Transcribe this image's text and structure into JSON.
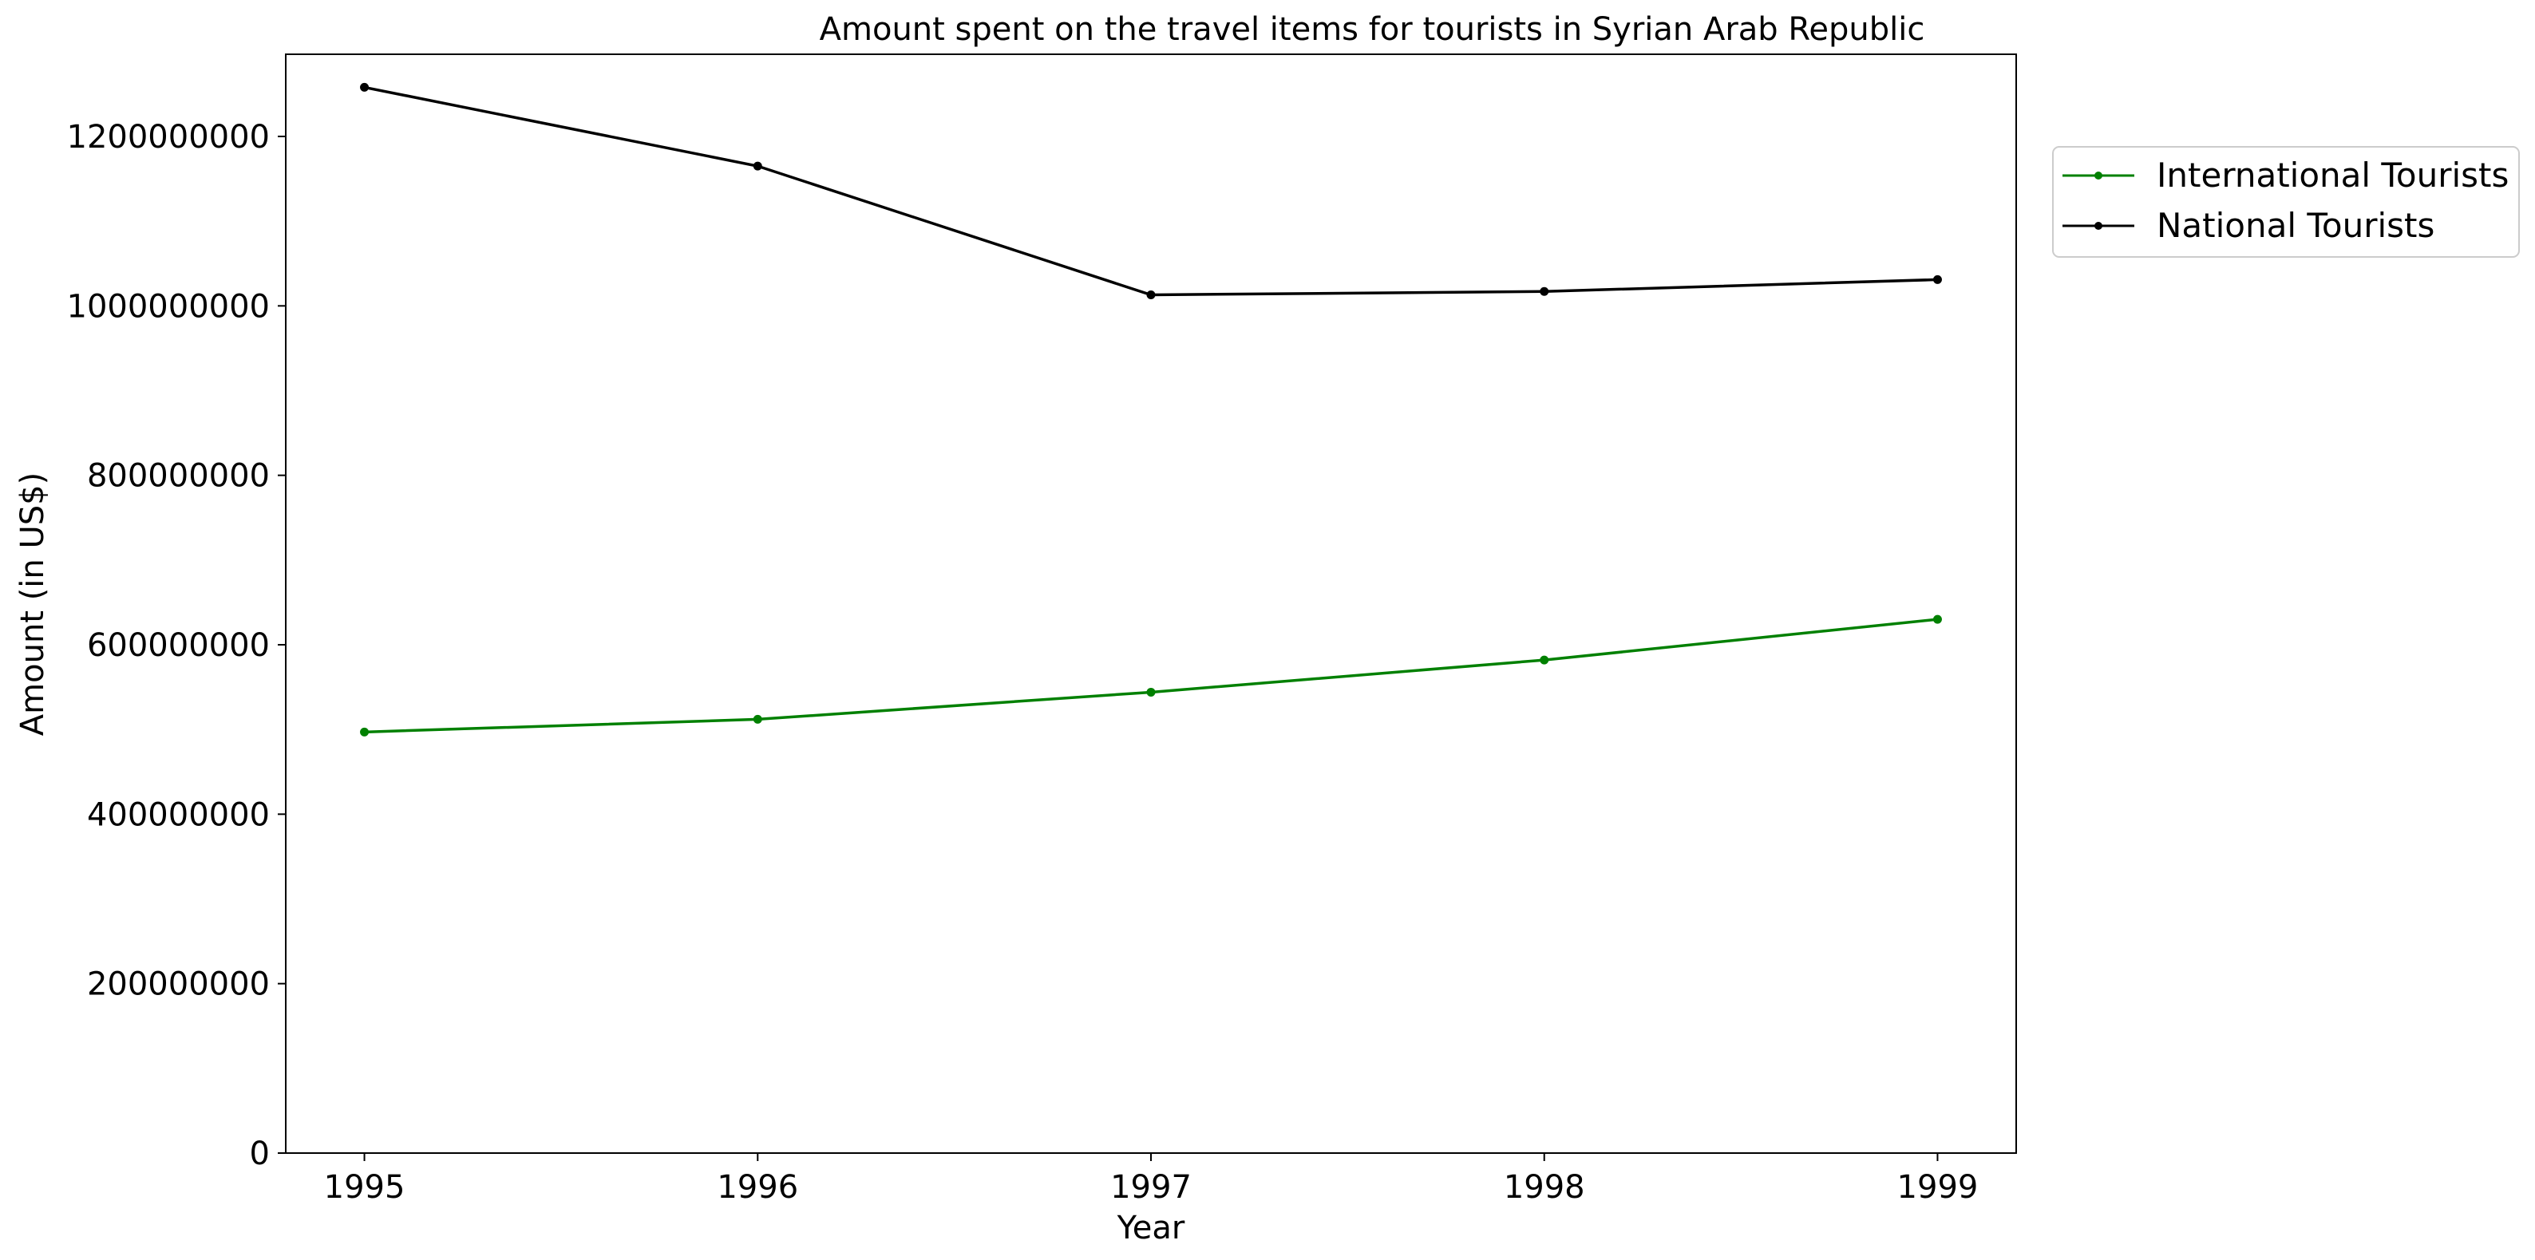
{
  "chart_data": {
    "type": "line",
    "title": "Amount spent on the travel items for tourists in Syrian Arab Republic",
    "xlabel": "Year",
    "ylabel": "Amount (in US$)",
    "x": [
      1995,
      1996,
      1997,
      1998,
      1999
    ],
    "series": [
      {
        "name": "International Tourists",
        "color": "#008000",
        "values": [
          497000000,
          512000000,
          544000000,
          582000000,
          630000000
        ]
      },
      {
        "name": "National Tourists",
        "color": "#000000",
        "values": [
          1258000000,
          1165000000,
          1013000000,
          1017000000,
          1031000000
        ]
      }
    ],
    "xlim": [
      1994.8,
      1999.2
    ],
    "ylim": [
      0,
      1297000000
    ],
    "yticks": [
      0,
      200000000,
      400000000,
      600000000,
      800000000,
      1000000000,
      1200000000
    ],
    "ytick_labels": [
      "0",
      "200000000",
      "400000000",
      "600000000",
      "800000000",
      "1000000000",
      "1200000000"
    ],
    "xtick_labels": [
      "1995",
      "1996",
      "1997",
      "1998",
      "1999"
    ],
    "grid": false,
    "legend_position": "upper right, outside plot"
  }
}
